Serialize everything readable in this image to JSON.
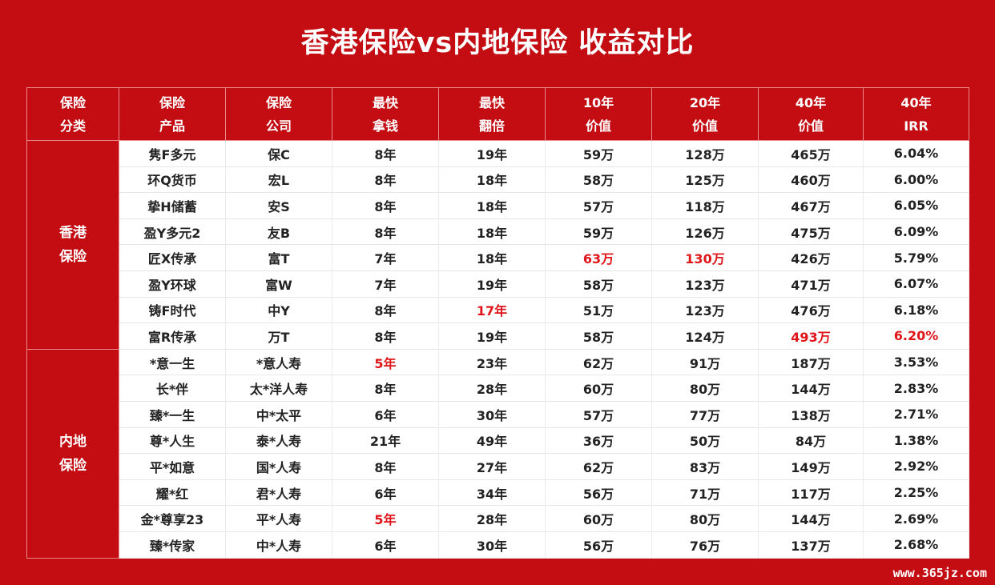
{
  "chart_data": {
    "type": "table",
    "title": "香港保险vs内地保险 收益对比",
    "columns": [
      [
        "保险",
        "分类"
      ],
      [
        "保险",
        "产品"
      ],
      [
        "保险",
        "公司"
      ],
      [
        "最快",
        "拿钱"
      ],
      [
        "最快",
        "翻倍"
      ],
      [
        "10年",
        "价值"
      ],
      [
        "20年",
        "价值"
      ],
      [
        "40年",
        "价值"
      ],
      [
        "40年",
        "IRR"
      ]
    ],
    "groups": [
      {
        "category": [
          "香港",
          "保险"
        ],
        "rows": [
          [
            "隽F多元",
            "保C",
            "8年",
            "19年",
            "59万",
            "128万",
            "465万",
            "6.04%"
          ],
          [
            "环Q货币",
            "宏L",
            "8年",
            "18年",
            "58万",
            "125万",
            "460万",
            "6.00%"
          ],
          [
            "挚H储蓄",
            "安S",
            "8年",
            "18年",
            "57万",
            "118万",
            "467万",
            "6.05%"
          ],
          [
            "盈Y多元2",
            "友B",
            "8年",
            "18年",
            "59万",
            "126万",
            "475万",
            "6.09%"
          ],
          [
            "匠X传承",
            "富T",
            "7年",
            "18年",
            "63万",
            "130万",
            "426万",
            "5.79%"
          ],
          [
            "盈Y环球",
            "富W",
            "7年",
            "19年",
            "58万",
            "123万",
            "471万",
            "6.07%"
          ],
          [
            "铸F时代",
            "中Y",
            "8年",
            "17年",
            "51万",
            "123万",
            "476万",
            "6.18%"
          ],
          [
            "富R传承",
            "万T",
            "8年",
            "19年",
            "58万",
            "124万",
            "493万",
            "6.20%"
          ]
        ]
      },
      {
        "category": [
          "内地",
          "保险"
        ],
        "rows": [
          [
            "*意一生",
            "*意人寿",
            "5年",
            "23年",
            "62万",
            "91万",
            "187万",
            "3.53%"
          ],
          [
            "长*伴",
            "太*洋人寿",
            "8年",
            "28年",
            "60万",
            "80万",
            "144万",
            "2.83%"
          ],
          [
            "臻*一生",
            "中*太平",
            "6年",
            "30年",
            "57万",
            "77万",
            "138万",
            "2.71%"
          ],
          [
            "尊*人生",
            "泰*人寿",
            "21年",
            "49年",
            "36万",
            "50万",
            "84万",
            "1.38%"
          ],
          [
            "平*如意",
            "国*人寿",
            "8年",
            "27年",
            "62万",
            "83万",
            "149万",
            "2.92%"
          ],
          [
            "耀*红",
            "君*人寿",
            "6年",
            "34年",
            "56万",
            "71万",
            "117万",
            "2.25%"
          ],
          [
            "金*尊享23",
            "平*人寿",
            "5年",
            "28年",
            "60万",
            "80万",
            "144万",
            "2.69%"
          ],
          [
            "臻*传家",
            "中*人寿",
            "6年",
            "30年",
            "56万",
            "76万",
            "137万",
            "2.68%"
          ]
        ]
      }
    ],
    "highlights": [
      {
        "group": 0,
        "row": 4,
        "col": 4
      },
      {
        "group": 0,
        "row": 4,
        "col": 5
      },
      {
        "group": 0,
        "row": 6,
        "col": 3
      },
      {
        "group": 0,
        "row": 7,
        "col": 6
      },
      {
        "group": 0,
        "row": 7,
        "col": 7
      },
      {
        "group": 1,
        "row": 0,
        "col": 2
      },
      {
        "group": 1,
        "row": 6,
        "col": 2
      }
    ]
  },
  "watermark": "www.365jz.com",
  "colors": {
    "background": "#c30d12",
    "highlight_text": "#e0151a",
    "cell_background": "#ffffff",
    "cell_text": "#222222"
  }
}
